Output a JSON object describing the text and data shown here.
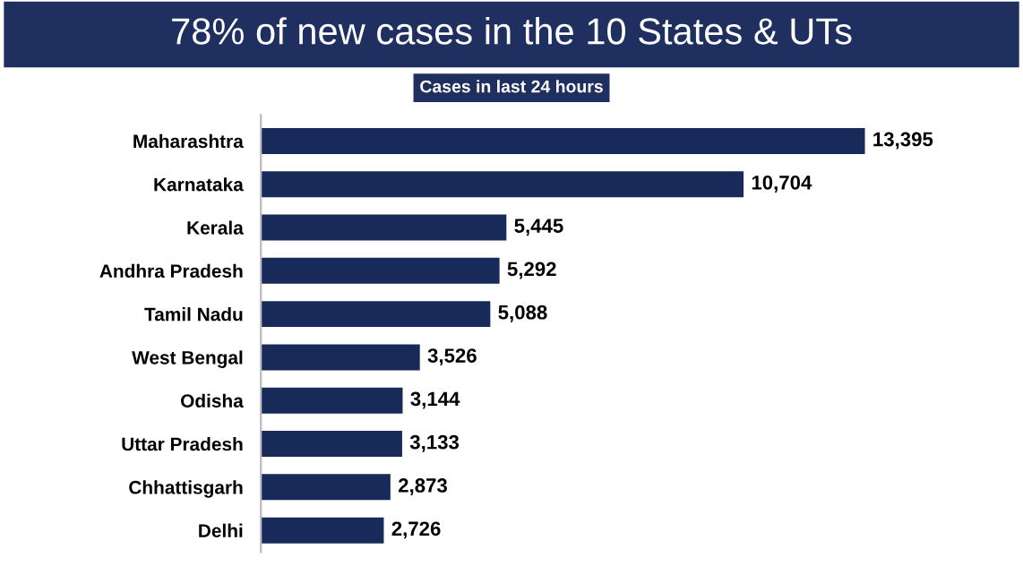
{
  "chart_data": {
    "type": "bar",
    "orientation": "horizontal",
    "title": "78% of new cases in the 10 States & UTs",
    "subtitle": "Cases in last 24 hours",
    "categories": [
      "Maharashtra",
      "Karnataka",
      "Kerala",
      "Andhra Pradesh",
      "Tamil Nadu",
      "West Bengal",
      "Odisha",
      "Uttar Pradesh",
      "Chhattisgarh",
      "Delhi"
    ],
    "values": [
      13395,
      10704,
      5445,
      5292,
      5088,
      3526,
      3144,
      3133,
      2873,
      2726
    ],
    "value_labels": [
      "13,395",
      "10,704",
      "5,445",
      "5,292",
      "5,088",
      "3,526",
      "3,144",
      "3,133",
      "2,873",
      "2,726"
    ],
    "color": "#172a5a",
    "tick_labels": "y",
    "grid": false,
    "legend": false
  }
}
